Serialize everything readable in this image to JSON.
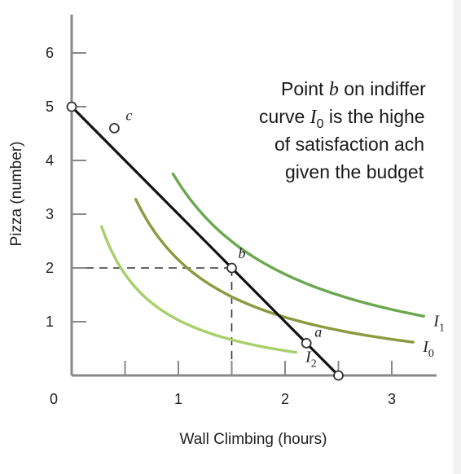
{
  "chart_data": {
    "type": "line",
    "xlabel": "Wall Climbing (hours)",
    "ylabel": "Pizza (number)",
    "xlim": [
      0,
      3.4
    ],
    "ylim": [
      0,
      6.7
    ],
    "x_ticks": [
      0,
      1,
      2,
      3
    ],
    "y_ticks": [
      1,
      2,
      3,
      4,
      5,
      6
    ],
    "x_tick_labels": [
      "0",
      "1",
      "2",
      "3"
    ],
    "y_tick_labels": [
      "1",
      "2",
      "3",
      "4",
      "5",
      "6"
    ],
    "budget_line": {
      "x": [
        0,
        2.5
      ],
      "y": [
        5,
        0
      ],
      "color": "#111111"
    },
    "indifference_curves": [
      {
        "name": "I",
        "subscript": "2",
        "k": 1.6,
        "x_from": 0.28,
        "x_to": 2.1,
        "color": "#a8cf6a",
        "curve_lit": true
      },
      {
        "name": "I",
        "subscript": "0",
        "k": 3.0,
        "x_from": 0.6,
        "x_to": 3.2,
        "color": "#8a9a3e"
      },
      {
        "name": "I",
        "subscript": "1",
        "k": 4.8,
        "x_from": 0.95,
        "x_to": 3.3,
        "color": "#6aa84f"
      }
    ],
    "points": [
      {
        "label": "c",
        "x": 0.4,
        "y": 4.6
      },
      {
        "label": "b",
        "x": 1.5,
        "y": 2.0
      },
      {
        "label": "a",
        "x": 2.2,
        "y": 0.6
      },
      {
        "label": "",
        "x": 0,
        "y": 5
      },
      {
        "label": "",
        "x": 2.5,
        "y": 0
      }
    ],
    "guide_point": {
      "x": 1.5,
      "y": 2.0
    },
    "annotation": {
      "line1": "Point ",
      "line1_italic": "b",
      "line1_rest": " on indiffer",
      "line2_pre": "curve ",
      "line2_italic": "I",
      "line2_sub": "0",
      "line2_rest": " is the highe",
      "line3": "of satisfaction ach",
      "line4": "given the budget"
    }
  }
}
